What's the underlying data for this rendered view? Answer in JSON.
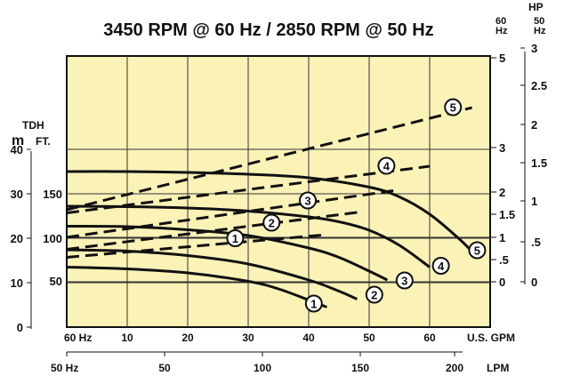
{
  "chart_data": {
    "type": "line",
    "title": "3450 RPM @ 60 Hz / 2850 RPM @ 50 Hz",
    "background_color": "#FBF2B8",
    "grid": true,
    "x_axis": {
      "primary_label": "U.S. GPM",
      "primary_start_label": "60 Hz",
      "primary_ticks": [
        "10",
        "20",
        "30",
        "40",
        "50",
        "60"
      ],
      "primary_range": [
        0,
        70
      ],
      "secondary_label": "LPM",
      "secondary_start_label": "50 Hz",
      "secondary_ticks": [
        "50",
        "100",
        "150",
        "200"
      ],
      "secondary_range": [
        0,
        225
      ]
    },
    "y_axis_left": {
      "label_top": "TDH",
      "meters_unit": "m",
      "meters_ticks": [
        "0",
        "10",
        "20",
        "30",
        "40"
      ],
      "feet_unit": "FT.",
      "feet_ticks": [
        "50",
        "100",
        "150"
      ],
      "range_m": [
        0,
        40
      ]
    },
    "y_axis_right": {
      "label": "HP",
      "hz60_label": "60\nHz",
      "hz50_label": "50\nHz",
      "hz60_ticks": [
        "0",
        ".5",
        "1",
        "1.5",
        "2",
        "3",
        "5"
      ],
      "hz50_ticks": [
        "0",
        ".5",
        "1",
        "1.5",
        "2",
        "2.5",
        "3"
      ],
      "range_hp_60": [
        0,
        5
      ]
    },
    "head_series": [
      {
        "name": "1",
        "x": [
          0,
          10,
          20,
          30,
          35,
          40,
          43
        ],
        "y": [
          13.5,
          13.1,
          12.2,
          10.3,
          8.6,
          6.1,
          4.5
        ]
      },
      {
        "name": "2",
        "x": [
          0,
          10,
          20,
          30,
          40,
          45,
          48
        ],
        "y": [
          17.4,
          17.1,
          16.1,
          14.2,
          10.6,
          8.1,
          6.3
        ]
      },
      {
        "name": "3",
        "x": [
          0,
          10,
          20,
          30,
          40,
          45,
          50,
          53
        ],
        "y": [
          22.7,
          22.6,
          21.9,
          20.6,
          17.8,
          15.7,
          12.6,
          10.6
        ]
      },
      {
        "name": "4",
        "x": [
          0,
          10,
          20,
          30,
          40,
          45,
          50,
          55,
          60
        ],
        "y": [
          27.2,
          27.1,
          26.8,
          26.1,
          24.8,
          23.7,
          21.8,
          18.4,
          13.5
        ]
      },
      {
        "name": "5",
        "x": [
          0,
          10,
          20,
          30,
          40,
          50,
          55,
          60,
          65,
          68
        ],
        "y": [
          35.0,
          35.0,
          34.8,
          34.4,
          33.6,
          31.5,
          29.3,
          25.4,
          19.7,
          15.6
        ]
      }
    ],
    "hp_series": [
      {
        "name": "1",
        "x": [
          0,
          43
        ],
        "hp": [
          0.55,
          1.06
        ]
      },
      {
        "name": "2",
        "x": [
          0,
          48
        ],
        "hp": [
          0.73,
          1.56
        ]
      },
      {
        "name": "3",
        "x": [
          0,
          54
        ],
        "hp": [
          1.0,
          2.05
        ]
      },
      {
        "name": "4",
        "x": [
          0,
          60
        ],
        "hp": [
          1.55,
          2.6
        ]
      },
      {
        "name": "5",
        "x": [
          0,
          67
        ],
        "hp": [
          1.62,
          3.9
        ]
      }
    ],
    "head_labels": [
      {
        "name": "1",
        "x": 41,
        "y": 5.3
      },
      {
        "name": "2",
        "x": 51,
        "y": 7.3
      },
      {
        "name": "3",
        "x": 56,
        "y": 10.5
      },
      {
        "name": "4",
        "x": 62,
        "y": 13.8
      },
      {
        "name": "5",
        "x": 68,
        "y": 17.3
      }
    ],
    "hp_labels": [
      {
        "name": "1",
        "x": 28,
        "hp": 0.92
      },
      {
        "name": "2",
        "x": 34,
        "hp": 1.27
      },
      {
        "name": "3",
        "x": 40,
        "hp": 1.77
      },
      {
        "name": "4",
        "x": 53,
        "hp": 2.55
      },
      {
        "name": "5",
        "x": 64,
        "hp": 3.85
      }
    ]
  }
}
